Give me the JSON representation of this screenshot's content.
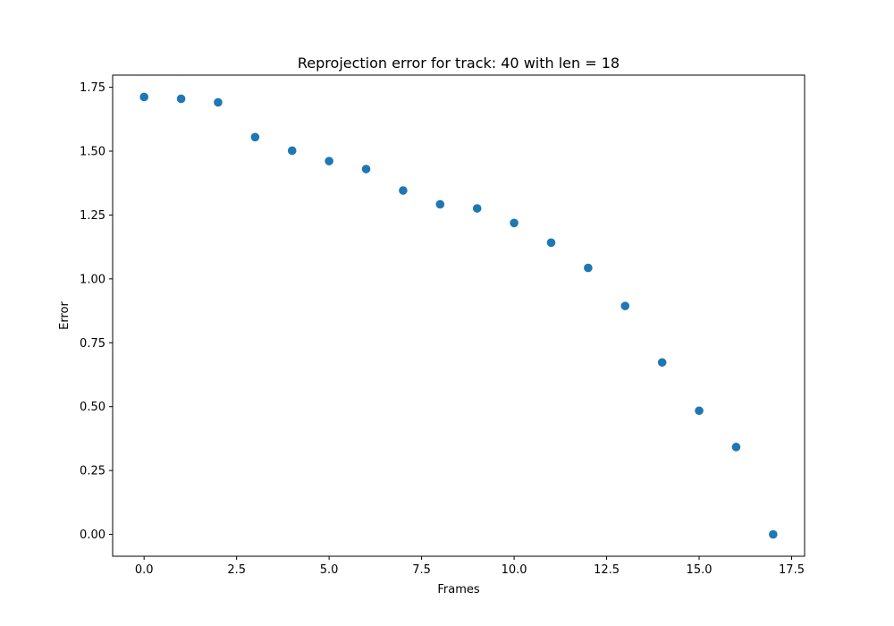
{
  "chart_data": {
    "type": "scatter",
    "title": "Reprojection error for track: 40 with len = 18",
    "xlabel": "Frames",
    "ylabel": "Error",
    "xlim": [
      -0.85,
      17.85
    ],
    "ylim": [
      -0.0856,
      1.7976
    ],
    "grid": false,
    "marker_color": "#1f77b4",
    "x_ticks": [
      0.0,
      2.5,
      5.0,
      7.5,
      10.0,
      12.5,
      15.0,
      17.5
    ],
    "x_tick_labels": [
      "0.0",
      "2.5",
      "5.0",
      "7.5",
      "10.0",
      "12.5",
      "15.0",
      "17.5"
    ],
    "y_ticks": [
      0.0,
      0.25,
      0.5,
      0.75,
      1.0,
      1.25,
      1.5,
      1.75
    ],
    "y_tick_labels": [
      "0.00",
      "0.25",
      "0.50",
      "0.75",
      "1.00",
      "1.25",
      "1.50",
      "1.75"
    ],
    "x": [
      0,
      1,
      2,
      3,
      4,
      5,
      6,
      7,
      8,
      9,
      10,
      11,
      12,
      13,
      14,
      15,
      16,
      17
    ],
    "y": [
      1.712,
      1.705,
      1.691,
      1.555,
      1.502,
      1.461,
      1.43,
      1.346,
      1.292,
      1.276,
      1.219,
      1.142,
      1.043,
      0.894,
      0.673,
      0.484,
      0.342,
      0.0
    ]
  }
}
